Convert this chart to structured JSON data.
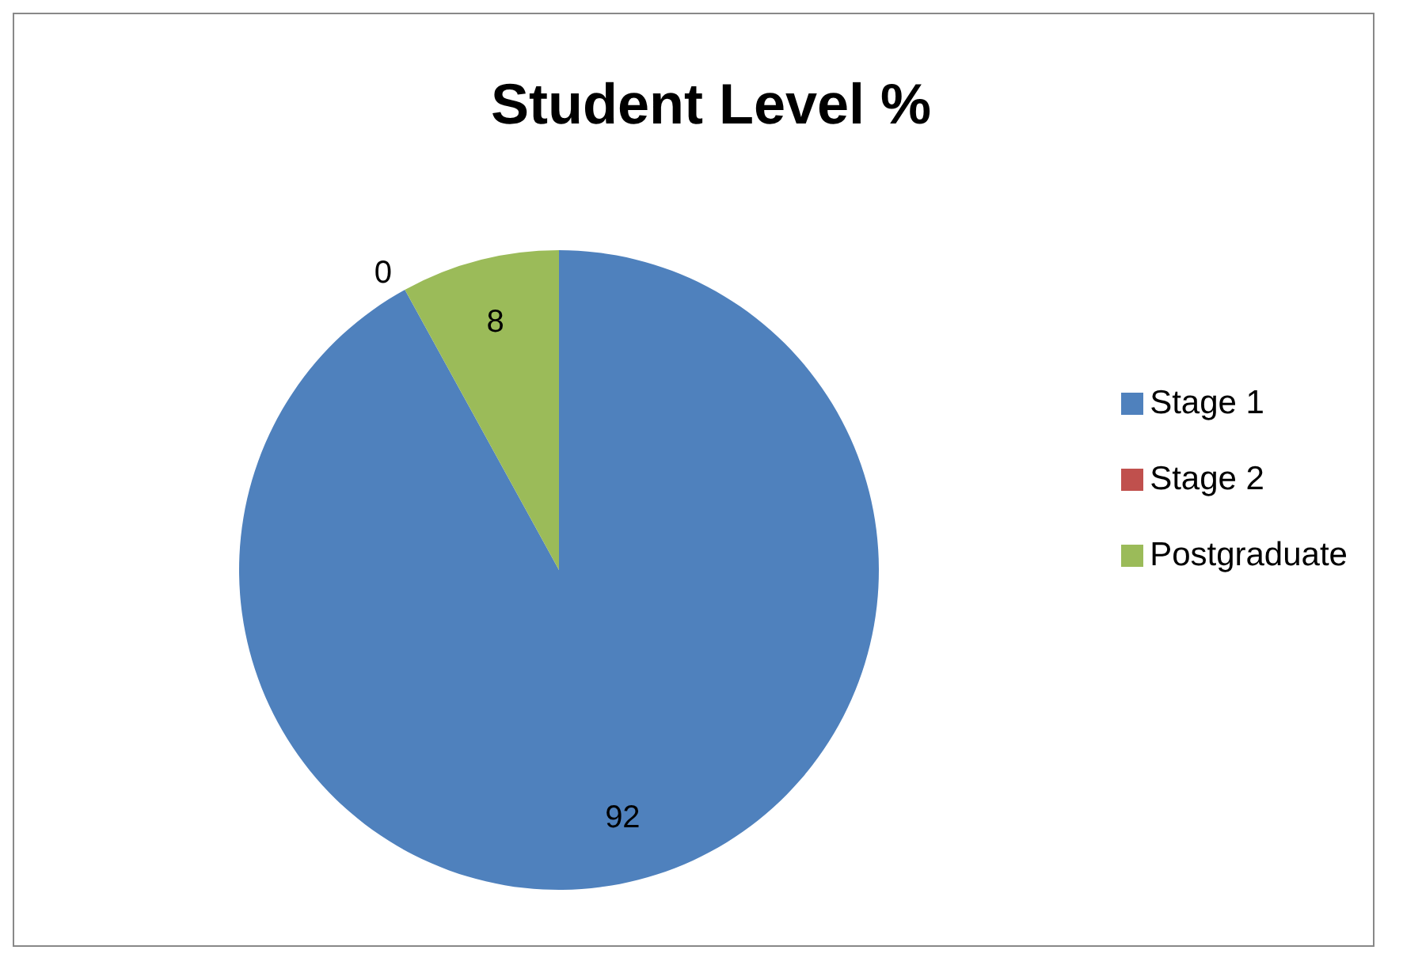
{
  "chart_data": {
    "type": "pie",
    "title": "Student Level %",
    "categories": [
      "Stage 1",
      "Stage 2",
      "Postgraduate"
    ],
    "values": [
      92,
      0,
      8
    ],
    "value_labels": [
      "92",
      "0",
      "8"
    ],
    "colors": [
      "#4f81bd",
      "#c0504d",
      "#9bbb59"
    ],
    "legend": "right"
  }
}
